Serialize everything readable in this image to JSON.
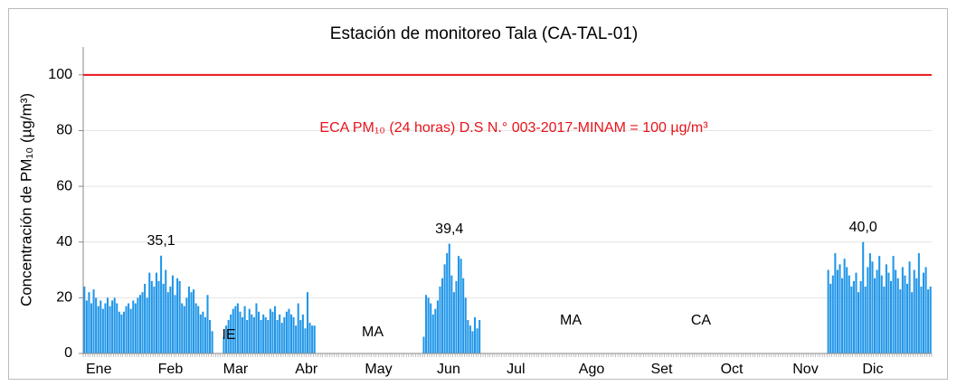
{
  "chart_data": {
    "type": "bar",
    "title": "Estación de monitoreo Tala (CA-TAL-01)",
    "y_label": "Concentración de PM₁₀ (µg/m³)",
    "color": "#2196e8",
    "ylim": [
      0,
      110
    ],
    "yticks": [
      0,
      20,
      40,
      60,
      80,
      100
    ],
    "grid": true,
    "limit": {
      "value": 100,
      "label": "ECA PM₁₀ (24 horas) D.S N.° 003-2017-MINAM = 100 µg/m³",
      "color": "#e8141c"
    },
    "annotations": [
      "IE",
      "MA",
      "MA",
      "CA"
    ],
    "months": [
      {
        "name": "Ene",
        "values": [
          24,
          19,
          22,
          18,
          23,
          20,
          17,
          19,
          16,
          18,
          20,
          17,
          19,
          20,
          18,
          15,
          14,
          15,
          17,
          18,
          16,
          19,
          18,
          20,
          21,
          22,
          25,
          20,
          29,
          26,
          24
        ]
      },
      {
        "name": "Feb",
        "values": [
          29,
          26,
          35.1,
          25,
          30,
          22,
          24,
          28,
          21,
          27,
          26,
          18,
          17,
          20,
          24,
          22,
          23,
          18,
          17,
          14,
          15,
          13,
          21,
          12,
          8,
          null,
          null,
          null
        ],
        "value_labels": [
          null,
          null,
          "35,1",
          null,
          null,
          null,
          null,
          null,
          null,
          null,
          null,
          null,
          null,
          null,
          null,
          null,
          null,
          null,
          null,
          null,
          null,
          null,
          null,
          null,
          null,
          null,
          null,
          null
        ]
      },
      {
        "name": "Mar",
        "values": [
          null,
          6,
          10,
          12,
          14,
          16,
          17,
          18,
          15,
          13,
          17,
          12,
          16,
          14,
          13,
          18,
          15,
          12,
          14,
          13,
          12,
          16,
          15,
          17,
          12,
          14,
          11,
          13,
          15,
          16,
          14
        ]
      },
      {
        "name": "Abr",
        "values": [
          13,
          10,
          18,
          12,
          14,
          9,
          22,
          11,
          10,
          10,
          null,
          null,
          null,
          null,
          null,
          null,
          null,
          null,
          null,
          null,
          null,
          null,
          null,
          null,
          null,
          null,
          null,
          null,
          null,
          null
        ]
      },
      {
        "name": "May",
        "values": [
          null,
          null,
          null,
          null,
          null,
          null,
          null,
          null,
          null,
          null,
          null,
          null,
          null,
          null,
          null,
          null,
          null,
          null,
          null,
          null,
          null,
          null,
          null,
          null,
          null,
          null,
          6,
          21,
          20,
          18,
          14
        ]
      },
      {
        "name": "Jun",
        "values": [
          16,
          19,
          24,
          27,
          32,
          36,
          39.4,
          28,
          22,
          26,
          35,
          34,
          27,
          20,
          12,
          10,
          8,
          13,
          9,
          12,
          null,
          null,
          null,
          null,
          null,
          null,
          null,
          null,
          null,
          null
        ],
        "value_labels": [
          null,
          null,
          null,
          null,
          null,
          null,
          "39,4",
          null,
          null,
          null,
          null,
          null,
          null,
          null,
          null,
          null,
          null,
          null,
          null,
          null,
          null,
          null,
          null,
          null,
          null,
          null,
          null,
          null,
          null,
          null
        ]
      },
      {
        "name": "Jul",
        "values": [
          null,
          null,
          null,
          null,
          null,
          null,
          null,
          null,
          null,
          null,
          null,
          null,
          null,
          null,
          null,
          null,
          null,
          null,
          null,
          null,
          null,
          null,
          null,
          null,
          null,
          null,
          null,
          null,
          null,
          null,
          null
        ]
      },
      {
        "name": "Ago",
        "values": [
          null,
          null,
          null,
          null,
          null,
          null,
          null,
          null,
          null,
          null,
          null,
          null,
          null,
          null,
          null,
          null,
          null,
          null,
          null,
          null,
          null,
          null,
          null,
          null,
          null,
          null,
          null,
          null,
          null,
          null,
          null
        ]
      },
      {
        "name": "Set",
        "values": [
          null,
          null,
          null,
          null,
          null,
          null,
          null,
          null,
          null,
          null,
          null,
          null,
          null,
          null,
          null,
          null,
          null,
          null,
          null,
          null,
          null,
          null,
          null,
          null,
          null,
          null,
          null,
          null,
          null,
          null
        ]
      },
      {
        "name": "Oct",
        "values": [
          null,
          null,
          null,
          null,
          null,
          null,
          null,
          null,
          null,
          null,
          null,
          null,
          null,
          null,
          null,
          null,
          null,
          null,
          null,
          null,
          null,
          null,
          null,
          null,
          null,
          null,
          null,
          null,
          null,
          null,
          null
        ]
      },
      {
        "name": "Nov",
        "values": [
          null,
          null,
          null,
          null,
          null,
          null,
          null,
          null,
          null,
          null,
          null,
          null,
          null,
          null,
          null,
          null,
          30,
          25,
          28,
          36,
          30,
          32,
          27,
          34,
          31,
          28,
          24,
          26,
          29,
          22
        ]
      },
      {
        "name": "Dic",
        "values": [
          26,
          40.0,
          24,
          31,
          36,
          33,
          27,
          30,
          35,
          28,
          24,
          32,
          29,
          26,
          35,
          30,
          27,
          23,
          31,
          28,
          25,
          33,
          22,
          30,
          27,
          36,
          24,
          29,
          31,
          23,
          24
        ],
        "value_labels": [
          null,
          "40,0",
          null,
          null,
          null,
          null,
          null,
          null,
          null,
          null,
          null,
          null,
          null,
          null,
          null,
          null,
          null,
          null,
          null,
          null,
          null,
          null,
          null,
          null,
          null,
          null,
          null,
          null,
          null,
          null,
          null
        ]
      }
    ]
  }
}
